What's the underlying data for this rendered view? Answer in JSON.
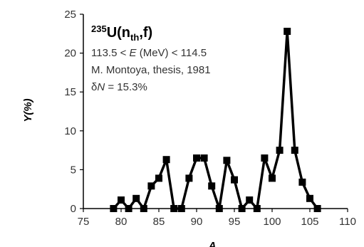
{
  "chart_data": {
    "type": "line",
    "xlabel": "A",
    "ylabel": "Y(%)",
    "xlim": [
      75,
      110
    ],
    "ylim": [
      0,
      25
    ],
    "xticks": [
      "75",
      "80",
      "85",
      "90",
      "95",
      "100",
      "105",
      "110"
    ],
    "yticks": [
      "0",
      "5",
      "10",
      "15",
      "20",
      "25"
    ],
    "grid": false,
    "x": [
      79,
      80,
      81,
      82,
      83,
      84,
      85,
      86,
      87,
      88,
      89,
      90,
      91,
      92,
      93,
      94,
      95,
      96,
      97,
      98,
      99,
      100,
      101,
      102,
      103,
      104,
      105,
      106
    ],
    "y": [
      0,
      1.1,
      0,
      1.3,
      0,
      2.9,
      3.9,
      6.3,
      0,
      0,
      3.9,
      6.5,
      6.5,
      2.9,
      0,
      6.2,
      3.7,
      0,
      1.1,
      0,
      6.5,
      3.9,
      7.5,
      22.8,
      7.5,
      3.4,
      1.3,
      0
    ],
    "annotations": {
      "title_mass": "235",
      "title_main": "U(n",
      "title_sub": "th",
      "title_end": ",f)",
      "energy_prefix": "113.5 < ",
      "energy_var": "E",
      "energy_suffix": " (MeV) < 114.5",
      "source": "M. Montoya, thesis, 1981",
      "delta_prefix": "δ",
      "delta_var": "N",
      "delta_suffix": " = 15.3%"
    },
    "colors": {
      "series": "#000000",
      "axis": "#000000"
    }
  }
}
